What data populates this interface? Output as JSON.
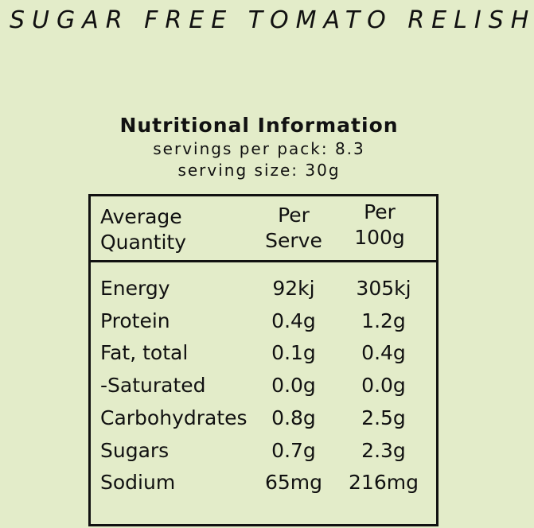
{
  "header": {
    "title": "SUGAR FREE TOMATO RELISH"
  },
  "panel": {
    "title": "Nutritional Information",
    "servings": "servings per pack: 8.3",
    "serving_size": "serving size: 30g"
  },
  "table": {
    "header": [
      [
        "Average",
        "Quantity"
      ],
      [
        "Per",
        "Serve"
      ],
      [
        "Per",
        "100g"
      ]
    ],
    "rows": [
      [
        "Energy",
        "92kj",
        "305kj"
      ],
      [
        "Protein",
        "0.4g",
        "1.2g"
      ],
      [
        "Fat, total",
        "0.1g",
        "0.4g"
      ],
      [
        "-Saturated",
        "0.0g",
        "0.0g"
      ],
      [
        "Carbohydrates",
        "0.8g",
        "2.5g"
      ],
      [
        "Sugars",
        "0.7g",
        "2.3g"
      ],
      [
        "Sodium",
        "65mg",
        "216mg"
      ]
    ]
  }
}
